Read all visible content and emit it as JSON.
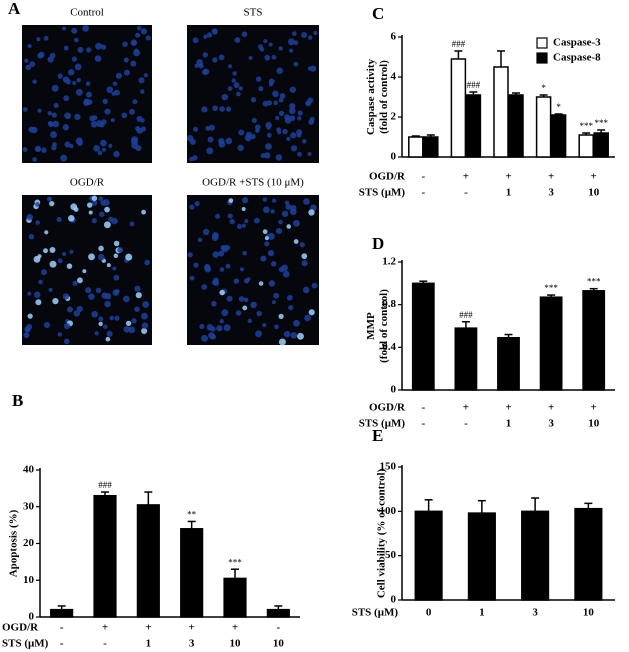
{
  "panel_a": {
    "label": "A",
    "images": [
      "Control",
      "STS",
      "OGD/R",
      "OGD/R +STS (10 μM)"
    ]
  },
  "chart_data": [
    {
      "type": "bar",
      "label": "B",
      "ylabel": [
        "Apoptosis  (%)"
      ],
      "ylim": [
        0,
        40
      ],
      "yticks": [
        0,
        10,
        20,
        30,
        40
      ],
      "color": "#000000",
      "values": [
        2,
        33,
        30.5,
        24,
        10.5,
        2
      ],
      "errors": [
        1,
        1,
        3.5,
        2,
        2.5,
        1
      ],
      "annotations": [
        null,
        "###",
        null,
        "**",
        "***",
        null
      ],
      "conditions": [
        {
          "name": "OGD/R",
          "values": [
            "-",
            "+",
            "+",
            "+",
            "+",
            "-"
          ]
        },
        {
          "name": "STS (μM)",
          "values": [
            "-",
            "-",
            "1",
            "3",
            "10",
            "10"
          ]
        }
      ]
    },
    {
      "type": "bar",
      "label": "C",
      "ylabel": [
        "Caspase activity",
        "(fold of control)"
      ],
      "ylim": [
        0,
        6
      ],
      "yticks": [
        0,
        2,
        4,
        6
      ],
      "legend": "upper right",
      "series": [
        {
          "name": "Caspase-3",
          "color": "#ffffff",
          "values": [
            1.0,
            4.9,
            4.5,
            3.0,
            1.1
          ],
          "errors": [
            0.05,
            0.4,
            0.8,
            0.1,
            0.1
          ],
          "annotations": [
            null,
            "###",
            null,
            "*",
            "***"
          ]
        },
        {
          "name": "Caspase-8",
          "color": "#000000",
          "values": [
            1.0,
            3.1,
            3.1,
            2.1,
            1.2
          ],
          "errors": [
            0.1,
            0.15,
            0.1,
            0.05,
            0.15
          ],
          "annotations": [
            null,
            "###",
            null,
            "*",
            "***"
          ]
        }
      ],
      "conditions": [
        {
          "name": "OGD/R",
          "values": [
            "-",
            "+",
            "+",
            "+",
            "+"
          ]
        },
        {
          "name": "STS (μM)",
          "values": [
            "-",
            "-",
            "1",
            "3",
            "10"
          ]
        }
      ]
    },
    {
      "type": "bar",
      "label": "D",
      "ylabel": [
        "MMP",
        "(fold of control)"
      ],
      "ylim": [
        0,
        1.2
      ],
      "yticks": [
        0,
        0.4,
        0.8,
        1.2
      ],
      "color": "#000000",
      "values": [
        1.0,
        0.58,
        0.49,
        0.87,
        0.93
      ],
      "errors": [
        0.02,
        0.06,
        0.03,
        0.02,
        0.02
      ],
      "annotations": [
        null,
        "###",
        null,
        "***",
        "***"
      ],
      "conditions": [
        {
          "name": "OGD/R",
          "values": [
            "-",
            "+",
            "+",
            "+",
            "+"
          ]
        },
        {
          "name": "STS (μM)",
          "values": [
            "-",
            "-",
            "1",
            "3",
            "10"
          ]
        }
      ]
    },
    {
      "type": "bar",
      "label": "E",
      "ylabel": [
        "Cell viability (% of control)"
      ],
      "ylim": [
        0,
        150
      ],
      "yticks": [
        0,
        50,
        100,
        150
      ],
      "color": "#000000",
      "values": [
        100,
        98,
        100,
        103
      ],
      "errors": [
        13,
        14,
        15,
        6
      ],
      "conditions": [
        {
          "name": "STS (μM)",
          "values": [
            "0",
            "1",
            "3",
            "10"
          ]
        }
      ]
    }
  ]
}
